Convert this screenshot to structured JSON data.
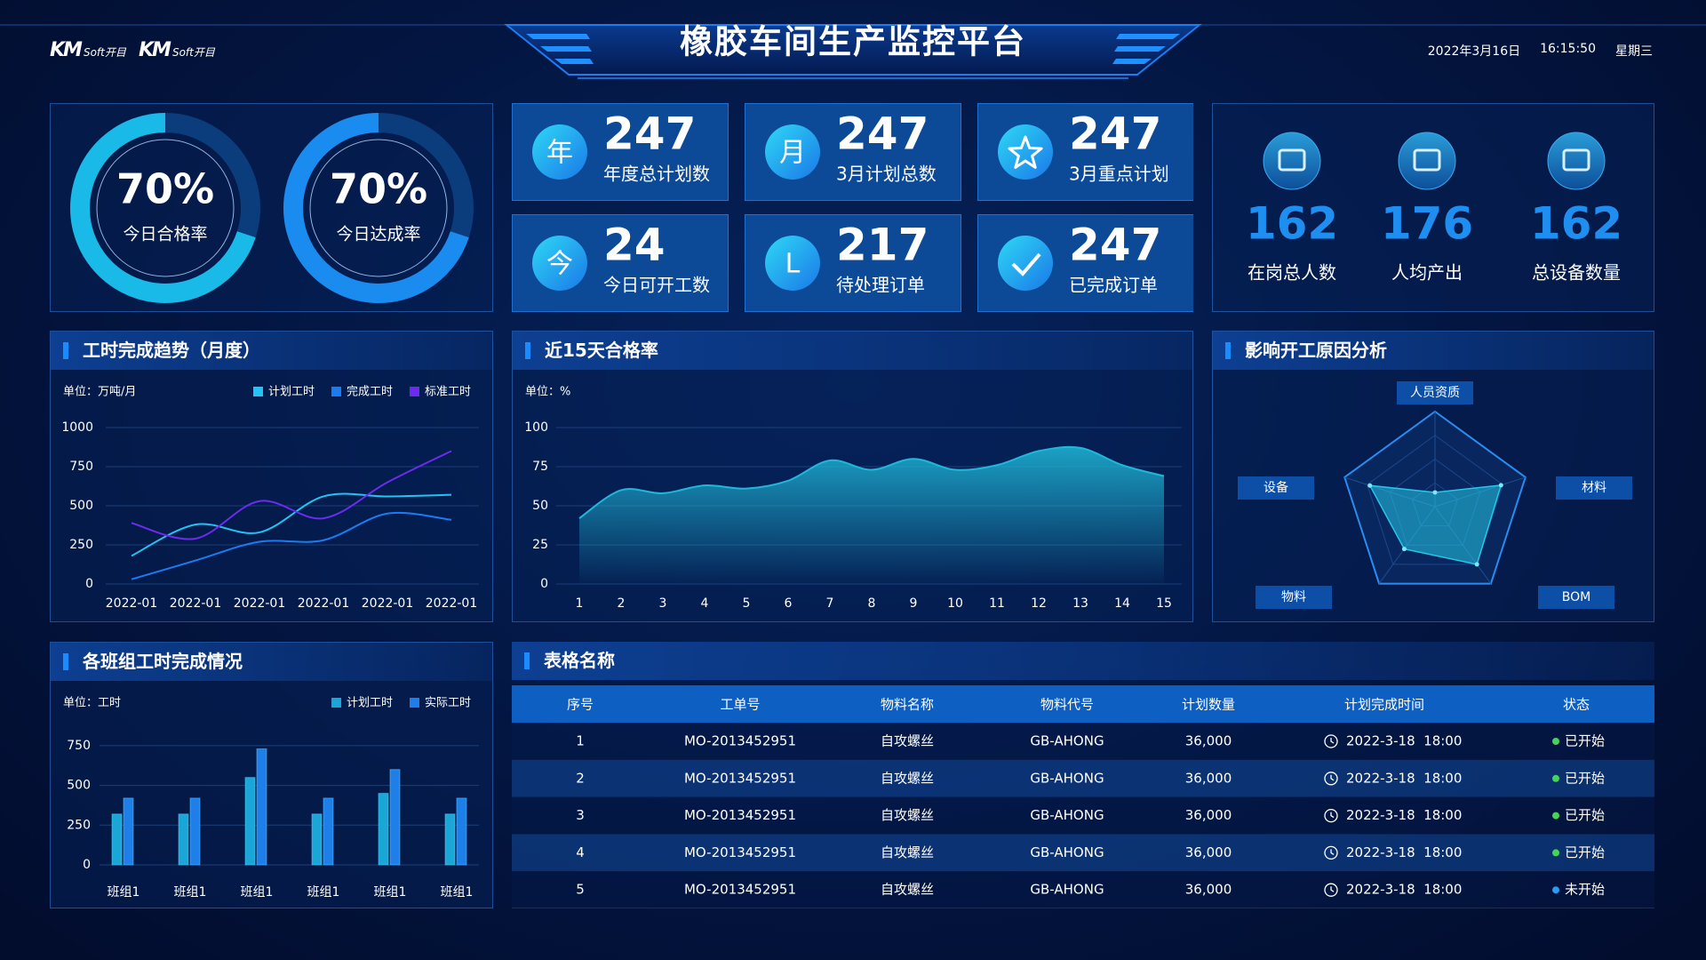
{
  "header": {
    "logos": [
      {
        "mark": "KM",
        "text": "Soft开目"
      },
      {
        "mark": "KM",
        "text": "Soft开目"
      }
    ],
    "title": "橡胶车间生产监控平台",
    "date": "2022年3月16日",
    "time": "16:15:50",
    "weekday": "星期三"
  },
  "gauges": [
    {
      "value": 70,
      "value_label": "70%",
      "label": "今日合格率",
      "color": "#19b9e8"
    },
    {
      "value": 70,
      "value_label": "70%",
      "label": "今日达成率",
      "color": "#1a8cf0"
    }
  ],
  "stats": [
    {
      "icon": "年",
      "value": 247,
      "label": "年度总计划数"
    },
    {
      "icon": "月",
      "value": 247,
      "label": "3月计划总数"
    },
    {
      "value": 247,
      "label": "3月重点计划"
    },
    {
      "icon": "今",
      "value": 24,
      "label": "今日可开工数"
    },
    {
      "icon": "L",
      "value": 217,
      "label": "待处理订单"
    },
    {
      "value": 247,
      "label": "已完成订单"
    }
  ],
  "people_stats": [
    {
      "value": 162,
      "label": "在岗总人数"
    },
    {
      "value": 176,
      "label": "人均产出"
    },
    {
      "value": 162,
      "label": "总设备数量"
    }
  ],
  "chart_data": [
    {
      "type": "line",
      "title": "工时完成趋势（月度）",
      "unit": "单位：万吨/月",
      "categories": [
        "2022-01",
        "2022-01",
        "2022-01",
        "2022-01",
        "2022-01",
        "2022-01"
      ],
      "series": [
        {
          "name": "计划工时",
          "color": "#22c3f5",
          "values": [
            180,
            380,
            330,
            560,
            560,
            570
          ]
        },
        {
          "name": "完成工时",
          "color": "#1a7cf0",
          "values": [
            30,
            150,
            270,
            280,
            450,
            410
          ]
        },
        {
          "name": "标准工时",
          "color": "#6d2bf0",
          "values": [
            390,
            290,
            530,
            420,
            650,
            850
          ]
        }
      ],
      "ylim": [
        0,
        1000
      ],
      "yticks": [
        0,
        250,
        500,
        750,
        1000
      ],
      "grid": true
    },
    {
      "type": "area",
      "title": "近15天合格率",
      "unit": "单位：%",
      "x": [
        1,
        2,
        3,
        4,
        5,
        6,
        7,
        8,
        9,
        10,
        11,
        12,
        13,
        14,
        15
      ],
      "values": [
        42,
        60,
        58,
        63,
        61,
        66,
        79,
        73,
        80,
        73,
        76,
        85,
        87,
        76,
        69
      ],
      "color": "#1fb8d8",
      "xlim": [
        1,
        15
      ],
      "xticks": [
        1,
        2,
        3,
        4,
        5,
        6,
        7,
        8,
        9,
        10,
        11,
        12,
        13,
        14,
        15
      ],
      "ylim": [
        0,
        100
      ],
      "yticks": [
        0,
        25,
        50,
        75,
        100
      ],
      "grid": true
    },
    {
      "type": "radar",
      "title": "影响开工原因分析",
      "indicators": [
        "人员资质",
        "材料",
        "BOM",
        "物料",
        "设备"
      ],
      "values": [
        15,
        73,
        75,
        55,
        72
      ],
      "color": "#25c8e8",
      "rlim": [
        0,
        100
      ]
    },
    {
      "type": "bar",
      "title": "各班组工时完成情况",
      "unit": "单位：工时",
      "categories": [
        "班组1",
        "班组1",
        "班组1",
        "班组1",
        "班组1",
        "班组1"
      ],
      "series": [
        {
          "name": "计划工时",
          "color": "#1aa6d6",
          "values": [
            320,
            320,
            550,
            320,
            450,
            320
          ]
        },
        {
          "name": "实际工时",
          "color": "#1f7fe8",
          "values": [
            420,
            420,
            730,
            420,
            600,
            420
          ]
        }
      ],
      "ylim": [
        0,
        850
      ],
      "yticks": [
        0,
        250,
        500,
        750
      ],
      "grid": true
    }
  ],
  "table": {
    "title": "表格名称",
    "columns": [
      "序号",
      "工单号",
      "物料名称",
      "物料代号",
      "计划数量",
      "计划完成时间",
      "状态"
    ],
    "rows": [
      {
        "no": 1,
        "order": "MO-2013452951",
        "name": "自攻螺丝",
        "code": "GB-AHONG",
        "qty": "36,000",
        "due": "2022-3-18  18:00",
        "status": "已开始",
        "status_color": "#45d35a"
      },
      {
        "no": 2,
        "order": "MO-2013452951",
        "name": "自攻螺丝",
        "code": "GB-AHONG",
        "qty": "36,000",
        "due": "2022-3-18  18:00",
        "status": "已开始",
        "status_color": "#45d35a"
      },
      {
        "no": 3,
        "order": "MO-2013452951",
        "name": "自攻螺丝",
        "code": "GB-AHONG",
        "qty": "36,000",
        "due": "2022-3-18  18:00",
        "status": "已开始",
        "status_color": "#45d35a"
      },
      {
        "no": 4,
        "order": "MO-2013452951",
        "name": "自攻螺丝",
        "code": "GB-AHONG",
        "qty": "36,000",
        "due": "2022-3-18  18:00",
        "status": "已开始",
        "status_color": "#45d35a"
      },
      {
        "no": 5,
        "order": "MO-2013452951",
        "name": "自攻螺丝",
        "code": "GB-AHONG",
        "qty": "36,000",
        "due": "2022-3-18  18:00",
        "status": "未开始",
        "status_color": "#2a9cf5"
      }
    ]
  }
}
